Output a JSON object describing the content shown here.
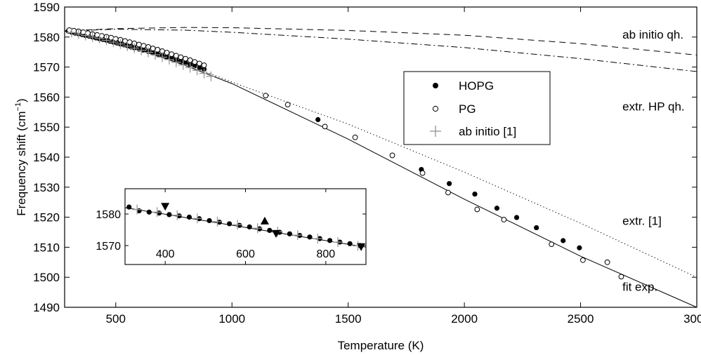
{
  "chart_data": {
    "type": "scatter",
    "xlabel": "Temperature (K)",
    "ylabel_main": "Frequency shift (cm",
    "ylabel_sup": "−1",
    "ylabel_close": ")",
    "xlim": [
      280,
      3000
    ],
    "ylim": [
      1490,
      1590
    ],
    "xticks": [
      500,
      1000,
      1500,
      2000,
      2500,
      3000
    ],
    "yticks": [
      1490,
      1500,
      1510,
      1520,
      1530,
      1540,
      1550,
      1560,
      1570,
      1580,
      1590
    ],
    "grid": false,
    "legend_position": "center-right",
    "annotations": [
      {
        "text": "ab initio qh.",
        "x": 2680,
        "y": 1579.5
      },
      {
        "text": "extr. HP qh.",
        "x": 2680,
        "y": 1555.5
      },
      {
        "text": "extr. [1]",
        "x": 2680,
        "y": 1517.5
      },
      {
        "text": "fit exp.",
        "x": 2680,
        "y": 1495.5
      }
    ],
    "series": [
      {
        "name": "HOPG",
        "marker": "filled-circle",
        "x": [
          295,
          310,
          325,
          340,
          355,
          370,
          385,
          400,
          415,
          430,
          445,
          460,
          475,
          490,
          505,
          520,
          535,
          550,
          565,
          580,
          600,
          620,
          640,
          660,
          680,
          700,
          720,
          740,
          760,
          780,
          800,
          820,
          840,
          860,
          880,
          1370,
          1815,
          1935,
          2045,
          2140,
          2225,
          2310,
          2425,
          2495
        ],
        "y": [
          1582,
          1581.6,
          1581.3,
          1581.1,
          1580.8,
          1580.5,
          1580.3,
          1580.0,
          1579.7,
          1579.4,
          1579.2,
          1578.9,
          1578.6,
          1578.3,
          1578.0,
          1577.7,
          1577.4,
          1577.1,
          1576.7,
          1576.4,
          1576.0,
          1575.6,
          1575.2,
          1574.7,
          1574.3,
          1573.8,
          1573.4,
          1572.9,
          1572.4,
          1571.9,
          1571.4,
          1570.9,
          1570.4,
          1569.8,
          1569.3,
          1552.5,
          1535.9,
          1531.2,
          1527.7,
          1523.0,
          1519.9,
          1516.5,
          1512.2,
          1509.8
        ]
      },
      {
        "name": "PG",
        "marker": "open-circle",
        "x": [
          300,
          320,
          340,
          360,
          380,
          400,
          420,
          440,
          460,
          480,
          500,
          520,
          540,
          560,
          580,
          600,
          620,
          640,
          660,
          680,
          700,
          720,
          740,
          760,
          780,
          800,
          820,
          840,
          860,
          880,
          1145,
          1240,
          1400,
          1530,
          1690,
          1820,
          1930,
          2055,
          2170,
          2375,
          2510,
          2615,
          2675
        ],
        "y": [
          1582.3,
          1582.1,
          1581.9,
          1581.6,
          1581.3,
          1581.0,
          1580.7,
          1580.4,
          1580.1,
          1579.8,
          1579.4,
          1579.1,
          1578.7,
          1578.3,
          1577.9,
          1577.5,
          1577.1,
          1576.7,
          1576.2,
          1575.8,
          1575.3,
          1574.8,
          1574.3,
          1573.8,
          1573.3,
          1572.8,
          1572.3,
          1571.7,
          1571.2,
          1570.6,
          1560.5,
          1557.5,
          1550.2,
          1546.6,
          1540.6,
          1534.7,
          1528.2,
          1522.6,
          1519.2,
          1511.0,
          1505.7,
          1505.0,
          1500.2
        ]
      },
      {
        "name": "ab initio [1]",
        "marker": "plus",
        "x": [
          310,
          340,
          370,
          400,
          430,
          460,
          490,
          520,
          550,
          580,
          610,
          640,
          670,
          700,
          730,
          760,
          790,
          820,
          850,
          880,
          910
        ],
        "y": [
          1581.5,
          1581.0,
          1580.5,
          1580.0,
          1579.5,
          1578.9,
          1578.3,
          1577.7,
          1577.0,
          1576.3,
          1575.6,
          1574.9,
          1574.1,
          1573.3,
          1572.5,
          1571.6,
          1570.7,
          1569.8,
          1568.9,
          1567.9,
          1566.9
        ]
      }
    ],
    "lines": [
      {
        "label": "fit exp.",
        "style": "solid",
        "x": [
          280,
          500,
          800,
          1000,
          1500,
          2000,
          2500,
          3000
        ],
        "y": [
          1582,
          1578.5,
          1570.5,
          1564.5,
          1546,
          1526,
          1507,
          1490
        ]
      },
      {
        "label": "extr. [1]",
        "style": "dotted",
        "x": [
          850,
          1000,
          1500,
          2000,
          2500,
          3000
        ],
        "y": [
          1569.5,
          1565,
          1551,
          1535,
          1518,
          1500
        ]
      },
      {
        "label": "ab initio qh.",
        "style": "dashed",
        "x": [
          280,
          500,
          800,
          1000,
          1500,
          2000,
          2500,
          3000
        ],
        "y": [
          1582,
          1582.8,
          1583.2,
          1583.1,
          1582.2,
          1580.6,
          1577.8,
          1574
        ]
      },
      {
        "label": "extr. HP qh.",
        "style": "dashdot",
        "x": [
          280,
          500,
          800,
          1000,
          1500,
          2000,
          2500,
          3000
        ],
        "y": [
          1582,
          1582.6,
          1582.3,
          1581.6,
          1579.3,
          1576.5,
          1572.8,
          1568.5
        ]
      }
    ],
    "inset": {
      "xlim": [
        300,
        900
      ],
      "ylim": [
        1564,
        1588
      ],
      "xticks": [
        400,
        600,
        800
      ],
      "yticks": [
        1570,
        1580
      ],
      "grid": false,
      "lines": [
        {
          "style": "solid",
          "x": [
            300,
            900
          ],
          "y": [
            1582,
            1569.5
          ]
        }
      ],
      "series": [
        {
          "name": "HOPG",
          "marker": "filled-circle",
          "x": [
            310,
            335,
            360,
            385,
            410,
            435,
            460,
            485,
            510,
            535,
            560,
            585,
            610,
            635,
            660,
            685,
            710,
            735,
            760,
            785,
            810,
            835,
            860,
            885
          ],
          "y": [
            1582.2,
            1581.0,
            1580.6,
            1580.3,
            1579.8,
            1579.4,
            1579.0,
            1578.5,
            1577.9,
            1577.4,
            1576.9,
            1576.4,
            1575.9,
            1575.3,
            1574.8,
            1574.2,
            1573.7,
            1573.2,
            1572.7,
            1572.2,
            1571.6,
            1571.1,
            1570.6,
            1570.0
          ]
        },
        {
          "name": "ab initio [1]",
          "marker": "plus",
          "x": [
            330,
            380,
            430,
            480,
            530,
            580,
            630,
            680,
            730,
            780,
            830,
            880
          ],
          "y": [
            1581.4,
            1580.6,
            1579.6,
            1578.6,
            1577.6,
            1576.6,
            1575.5,
            1574.4,
            1573.3,
            1572.2,
            1571.1,
            1569.9
          ]
        },
        {
          "name": "triangle-up",
          "marker": "triangle-up",
          "x": [
            648
          ],
          "y": [
            1577.8
          ]
        },
        {
          "name": "triangle-down",
          "marker": "triangle-down",
          "x": [
            400,
            676,
            888
          ],
          "y": [
            1582.4,
            1573.8,
            1569.6
          ]
        }
      ]
    }
  }
}
